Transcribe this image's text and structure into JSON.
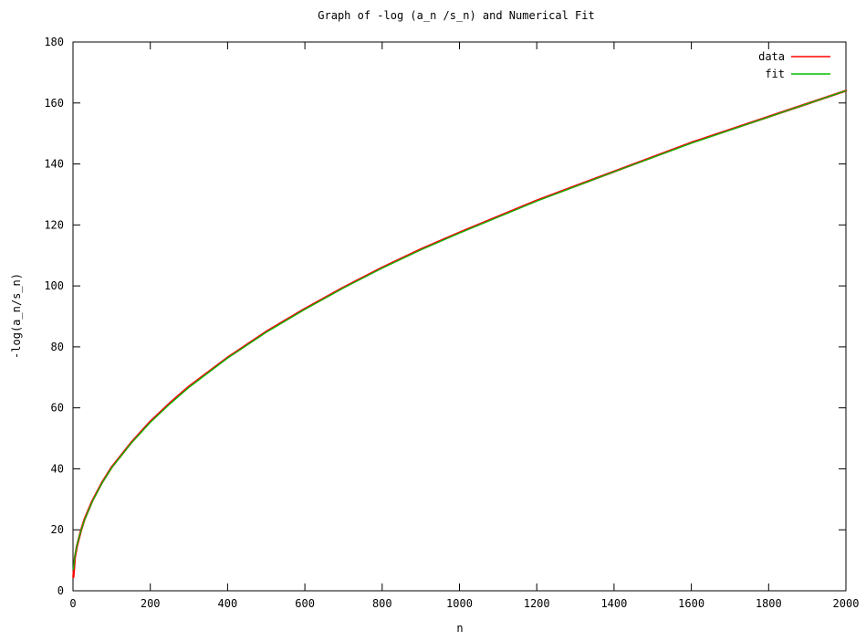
{
  "chart_data": {
    "type": "line",
    "title": "Graph of -log (a_n /s_n) and Numerical Fit",
    "xlabel": "n",
    "ylabel": "-log(a_n/s_n)",
    "xlim": [
      0,
      2000
    ],
    "ylim": [
      0,
      180
    ],
    "x_ticks": [
      0,
      200,
      400,
      600,
      800,
      1000,
      1200,
      1400,
      1600,
      1800,
      2000
    ],
    "y_ticks": [
      0,
      20,
      40,
      60,
      80,
      100,
      120,
      140,
      160,
      180
    ],
    "grid": false,
    "legend_position": "top-right",
    "series": [
      {
        "name": "data",
        "color": "#ff0000",
        "x": [
          1,
          5,
          10,
          20,
          30,
          50,
          75,
          100,
          150,
          200,
          250,
          300,
          400,
          500,
          600,
          700,
          800,
          900,
          1000,
          1200,
          1400,
          1600,
          1800,
          2000
        ],
        "y": [
          4.5,
          11,
          14.5,
          19.5,
          23.5,
          29.5,
          35.5,
          40.5,
          48.5,
          55.5,
          61.5,
          67,
          76.5,
          85,
          92.5,
          99.5,
          106,
          112,
          117.5,
          128,
          137.5,
          147,
          155.5,
          164
        ]
      },
      {
        "name": "fit",
        "color": "#00c000",
        "x": [
          1,
          5,
          10,
          20,
          30,
          50,
          75,
          100,
          150,
          200,
          250,
          300,
          400,
          500,
          600,
          700,
          800,
          900,
          1000,
          1200,
          1400,
          1600,
          1800,
          2000
        ],
        "y": [
          7,
          11.5,
          14.8,
          19.5,
          23.3,
          29.3,
          35.3,
          40.3,
          48.3,
          55.2,
          61.2,
          66.7,
          76.3,
          84.8,
          92.3,
          99.3,
          105.8,
          111.8,
          117.3,
          127.8,
          137.4,
          146.8,
          155.4,
          164
        ]
      }
    ]
  }
}
